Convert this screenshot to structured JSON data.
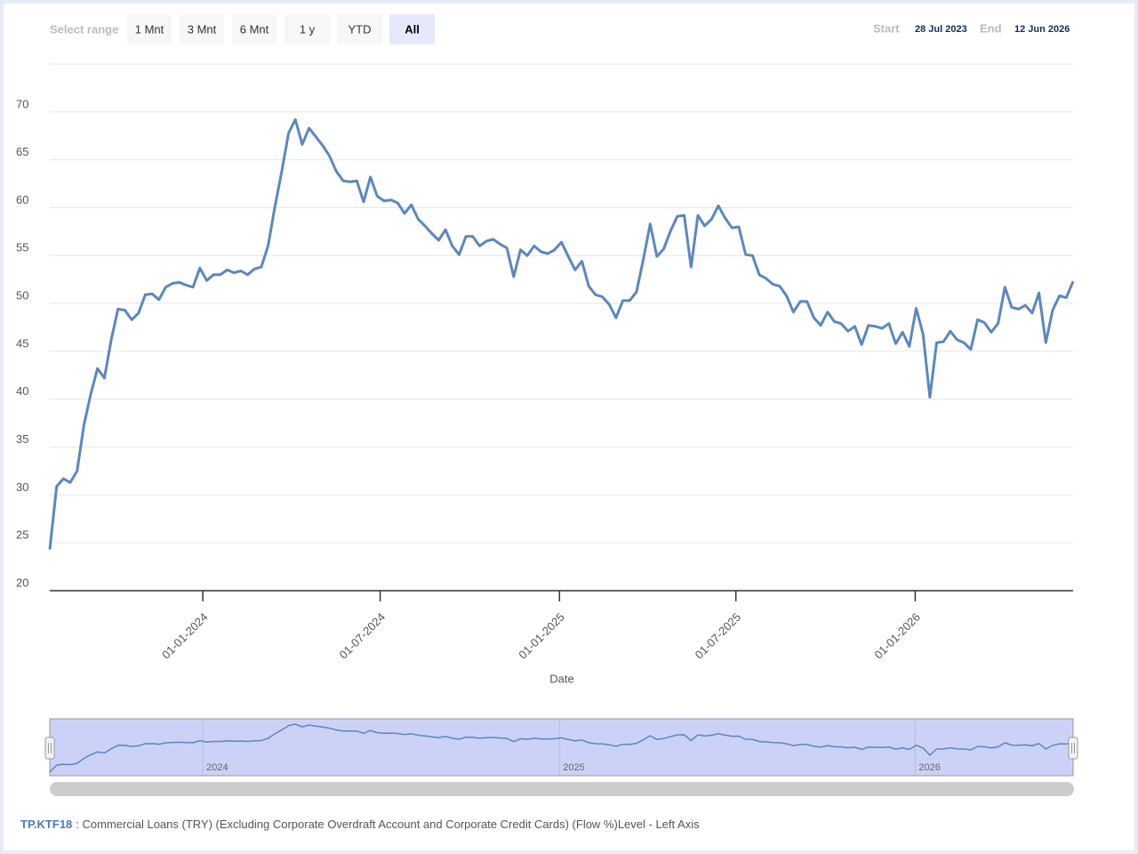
{
  "range_selector": {
    "label": "Select range",
    "buttons": [
      "1 Mnt",
      "3 Mnt",
      "6 Mnt",
      "1 y",
      "YTD",
      "All"
    ],
    "selected": "All",
    "start_label": "Start",
    "start": "28 Jul 2023",
    "end_label": "End",
    "end": "12 Jun 2026"
  },
  "chart_data": {
    "type": "line",
    "x_label": "Date",
    "x": [
      "2023-07-28",
      "2023-08-04",
      "2023-08-11",
      "2023-08-18",
      "2023-08-25",
      "2023-09-01",
      "2023-09-08",
      "2023-09-15",
      "2023-09-22",
      "2023-09-29",
      "2023-10-06",
      "2023-10-13",
      "2023-10-20",
      "2023-10-27",
      "2023-11-03",
      "2023-11-10",
      "2023-11-17",
      "2023-11-24",
      "2023-12-01",
      "2023-12-08",
      "2023-12-15",
      "2023-12-22",
      "2023-12-29",
      "2024-01-05",
      "2024-01-12",
      "2024-01-19",
      "2024-01-26",
      "2024-02-02",
      "2024-02-09",
      "2024-02-16",
      "2024-02-23",
      "2024-03-01",
      "2024-03-08",
      "2024-03-15",
      "2024-03-22",
      "2024-03-29",
      "2024-04-05",
      "2024-04-12",
      "2024-04-19",
      "2024-04-26",
      "2024-05-03",
      "2024-05-10",
      "2024-05-17",
      "2024-05-24",
      "2024-05-31",
      "2024-06-07",
      "2024-06-14",
      "2024-06-21",
      "2024-06-28",
      "2024-07-05",
      "2024-07-12",
      "2024-07-19",
      "2024-07-26",
      "2024-08-02",
      "2024-08-09",
      "2024-08-16",
      "2024-08-23",
      "2024-08-30",
      "2024-09-06",
      "2024-09-13",
      "2024-09-20",
      "2024-09-27",
      "2024-10-04",
      "2024-10-11",
      "2024-10-18",
      "2024-10-25",
      "2024-11-01",
      "2024-11-08",
      "2024-11-15",
      "2024-11-22",
      "2024-11-29",
      "2024-12-06",
      "2024-12-13",
      "2024-12-20",
      "2024-12-27",
      "2025-01-03",
      "2025-01-10",
      "2025-01-17",
      "2025-01-24",
      "2025-01-31",
      "2025-02-07",
      "2025-02-14",
      "2025-02-21",
      "2025-02-28",
      "2025-03-07",
      "2025-03-14",
      "2025-03-21",
      "2025-03-28",
      "2025-04-04",
      "2025-04-11",
      "2025-04-18",
      "2025-04-25",
      "2025-05-02",
      "2025-05-09",
      "2025-05-16",
      "2025-05-23",
      "2025-05-30",
      "2025-06-06",
      "2025-06-13",
      "2025-06-20",
      "2025-06-27",
      "2025-07-04",
      "2025-07-11",
      "2025-07-18",
      "2025-07-25",
      "2025-08-01",
      "2025-08-08",
      "2025-08-15",
      "2025-08-22",
      "2025-08-29",
      "2025-09-05",
      "2025-09-12",
      "2025-09-19",
      "2025-09-26",
      "2025-10-03",
      "2025-10-10",
      "2025-10-17",
      "2025-10-24",
      "2025-10-31",
      "2025-11-07",
      "2025-11-14",
      "2025-11-21",
      "2025-11-28",
      "2025-12-05",
      "2025-12-12",
      "2025-12-19",
      "2025-12-26",
      "2026-01-02",
      "2026-01-09",
      "2026-01-16",
      "2026-01-23",
      "2026-01-30",
      "2026-02-06",
      "2026-02-13",
      "2026-02-20",
      "2026-02-27",
      "2026-03-06",
      "2026-03-13",
      "2026-03-20",
      "2026-03-27",
      "2026-04-03",
      "2026-04-10",
      "2026-04-17",
      "2026-04-24",
      "2026-05-01",
      "2026-05-08",
      "2026-05-15",
      "2026-05-22",
      "2026-05-29",
      "2026-06-05",
      "2026-06-12"
    ],
    "series": [
      {
        "name": "TP.KTF18",
        "description": ": Commercial Loans (TRY) (Excluding Corporate Overdraft Account and Corporate Credit Cards) (Flow %)Level - Left Axis",
        "color": "#5b87c0",
        "values": [
          24.3,
          30.9,
          31.7,
          31.3,
          32.5,
          37.3,
          40.5,
          43.2,
          42.2,
          46.2,
          49.4,
          49.3,
          48.3,
          49.0,
          50.9,
          51.0,
          50.4,
          51.7,
          52.1,
          52.2,
          51.9,
          51.7,
          53.7,
          52.4,
          53.0,
          53.0,
          53.5,
          53.2,
          53.4,
          53.0,
          53.6,
          53.8,
          56.0,
          60.1,
          63.8,
          67.8,
          69.2,
          66.6,
          68.3,
          67.4,
          66.5,
          65.4,
          63.8,
          62.8,
          62.7,
          62.8,
          60.6,
          63.2,
          61.2,
          60.7,
          60.8,
          60.5,
          59.4,
          60.3,
          58.8,
          58.1,
          57.3,
          56.6,
          57.7,
          56.0,
          55.1,
          57.0,
          57.0,
          56.0,
          56.5,
          56.7,
          56.2,
          55.8,
          52.8,
          55.6,
          55.0,
          56.0,
          55.4,
          55.2,
          55.6,
          56.4,
          54.9,
          53.5,
          54.4,
          51.8,
          50.9,
          50.7,
          49.9,
          48.5,
          50.3,
          50.3,
          51.2,
          54.6,
          58.3,
          54.9,
          55.7,
          57.6,
          59.1,
          59.2,
          53.8,
          59.2,
          58.1,
          58.8,
          60.2,
          58.9,
          57.9,
          58.0,
          55.1,
          55.0,
          53.0,
          52.6,
          52.0,
          51.8,
          50.8,
          49.1,
          50.2,
          50.2,
          48.5,
          47.7,
          49.1,
          48.1,
          47.9,
          47.1,
          47.6,
          45.7,
          47.7,
          47.6,
          47.4,
          47.9,
          45.8,
          47.0,
          45.5,
          49.5,
          46.8,
          40.2,
          45.9,
          46.0,
          47.1,
          46.2,
          45.9,
          45.2,
          48.3,
          48.0,
          47.0,
          47.9,
          51.7,
          49.6,
          49.4,
          49.8,
          49.0,
          51.1,
          45.9,
          49.3,
          50.8,
          50.6,
          52.3
        ]
      }
    ],
    "xlim": [
      "2023-07-28",
      "2026-06-12"
    ],
    "xticks": [
      {
        "value": "2024-01-01",
        "label": "01-01-2024"
      },
      {
        "value": "2024-07-01",
        "label": "01-07-2024"
      },
      {
        "value": "2025-01-01",
        "label": "01-01-2025"
      },
      {
        "value": "2025-07-01",
        "label": "01-07-2025"
      },
      {
        "value": "2026-01-01",
        "label": "01-01-2026"
      }
    ],
    "ylim": [
      20,
      75
    ],
    "yticks": [
      20,
      25,
      30,
      35,
      40,
      45,
      50,
      55,
      60,
      65,
      70
    ],
    "grid": true,
    "navigator": {
      "xticks": [
        {
          "value": "2024-01-01",
          "label": "2024"
        },
        {
          "value": "2025-01-01",
          "label": "2025"
        },
        {
          "value": "2026-01-01",
          "label": "2026"
        }
      ],
      "color": "#ccd2f7"
    }
  }
}
